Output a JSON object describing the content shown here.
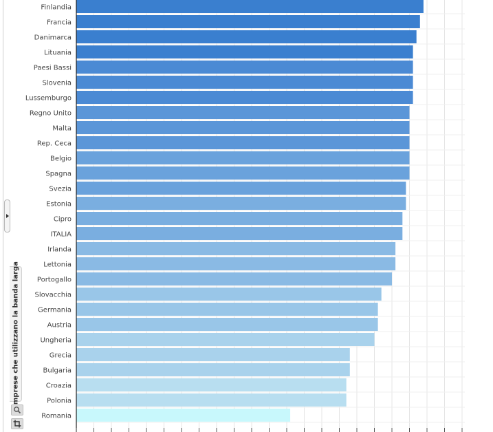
{
  "sidebar": {
    "vertical_tab_label": "Imprese che utilizzano la banda larga",
    "toggle_icon": "chevron-right-icon",
    "tools": [
      "zoom-icon",
      "crop-icon"
    ]
  },
  "chart_data": {
    "type": "bar",
    "orientation": "horizontal",
    "categories": [
      "Finlandia",
      "Francia",
      "Danimarca",
      "Lituania",
      "Paesi Bassi",
      "Slovenia",
      "Lussemburgo",
      "Regno Unito",
      "Malta",
      "Rep. Ceca",
      "Belgio",
      "Spagna",
      "Svezia",
      "Estonia",
      "Cipro",
      "ITALIA",
      "Irlanda",
      "Lettonia",
      "Portogallo",
      "Slovacchia",
      "Germania",
      "Austria",
      "Ungheria",
      "Grecia",
      "Bulgaria",
      "Croazia",
      "Polonia",
      "Romania"
    ],
    "values": [
      99,
      98,
      97,
      96,
      96,
      96,
      96,
      95,
      95,
      95,
      95,
      95,
      94,
      94,
      93,
      93,
      91,
      91,
      90,
      87,
      86,
      86,
      85,
      78,
      78,
      77,
      77,
      61
    ],
    "xlim": [
      0,
      110
    ],
    "grid": true,
    "colors": [
      "#3a7fcf",
      "#4b8ad4",
      "#5b96d8",
      "#6aa2dc",
      "#7aaee0",
      "#8abae4",
      "#99c6e8",
      "#a9d2ec",
      "#b8def0",
      "#c8f8fc"
    ],
    "grid_color": "#e4e4e4",
    "axis_color": "#222222"
  }
}
